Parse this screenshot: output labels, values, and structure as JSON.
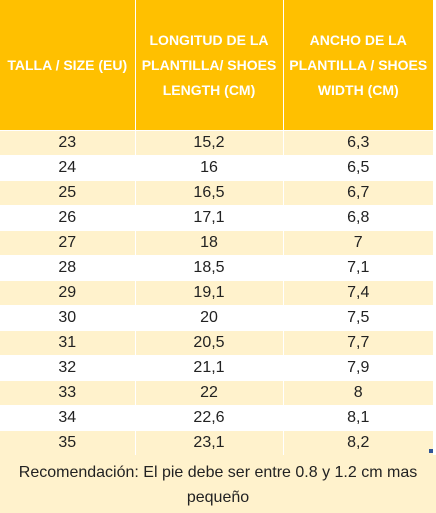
{
  "table": {
    "headers": [
      "TALLA / SIZE (EU)",
      "LONGITUD DE LA PLANTILLA/ SHOES LENGTH (CM)",
      "ANCHO DE LA PLANTILLA / SHOES WIDTH (CM)"
    ],
    "rows": [
      [
        "23",
        "15,2",
        "6,3"
      ],
      [
        "24",
        "16",
        "6,5"
      ],
      [
        "25",
        "16,5",
        "6,7"
      ],
      [
        "26",
        "17,1",
        "6,8"
      ],
      [
        "27",
        "18",
        "7"
      ],
      [
        "28",
        "18,5",
        "7,1"
      ],
      [
        "29",
        "19,1",
        "7,4"
      ],
      [
        "30",
        "20",
        "7,5"
      ],
      [
        "31",
        "20,5",
        "7,7"
      ],
      [
        "32",
        "21,1",
        "7,9"
      ],
      [
        "33",
        "22",
        "8"
      ],
      [
        "34",
        "22,6",
        "8,1"
      ],
      [
        "35",
        "23,1",
        "8,2"
      ]
    ],
    "note": "Recomendación: El pie debe ser entre 0.8 y 1.2 cm mas pequeño"
  },
  "colors": {
    "header_bg": "#ffc000",
    "header_text": "#ffffff",
    "band_bg": "#fff2cc"
  }
}
